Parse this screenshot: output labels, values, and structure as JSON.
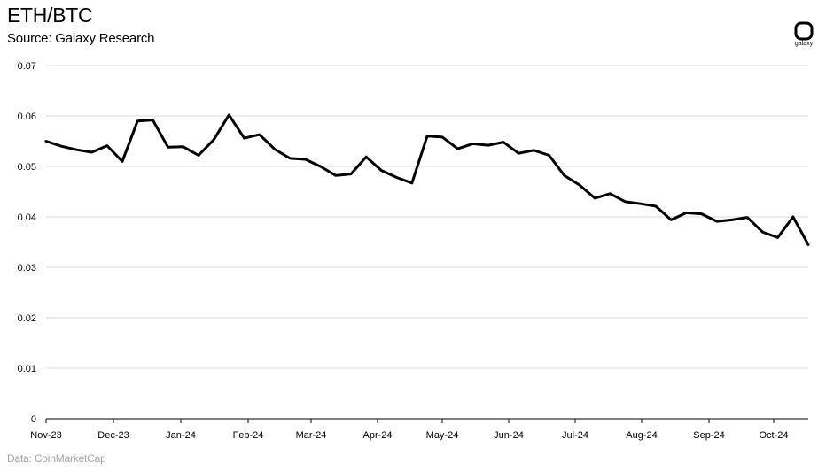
{
  "header": {
    "title": "ETH/BTC",
    "subtitle": "Source: Galaxy Research"
  },
  "logo": {
    "text": "galaxy",
    "icon": "galaxy-logo-icon"
  },
  "footer": {
    "data_source": "Data: CoinMarketCap"
  },
  "chart_data": {
    "type": "line",
    "title": "ETH/BTC",
    "subtitle": "Source: Galaxy Research",
    "xlabel": "",
    "ylabel": "",
    "x_tick_labels": [
      "Nov-23",
      "Dec-23",
      "Jan-24",
      "Feb-24",
      "Mar-24",
      "Apr-24",
      "May-24",
      "Jun-24",
      "Jul-24",
      "Aug-24",
      "Sep-24",
      "Oct-24"
    ],
    "y_tick_labels": [
      "0",
      "0.01",
      "0.02",
      "0.03",
      "0.04",
      "0.05",
      "0.06",
      "0.07"
    ],
    "ylim": [
      0,
      0.07
    ],
    "grid": "horizontal",
    "legend": "none",
    "line_color": "#000000",
    "series": [
      {
        "values": [
          0.055,
          0.054,
          0.0533,
          0.0528,
          0.0541,
          0.051,
          0.059,
          0.0592,
          0.0538,
          0.0539,
          0.0522,
          0.0553,
          0.0602,
          0.0556,
          0.0563,
          0.0534,
          0.0516,
          0.0514,
          0.05,
          0.0482,
          0.0485,
          0.0519,
          0.0492,
          0.0478,
          0.0467,
          0.056,
          0.0558,
          0.0535,
          0.0545,
          0.0542,
          0.0548,
          0.0526,
          0.0532,
          0.0522,
          0.0482,
          0.0463,
          0.0437,
          0.0446,
          0.043,
          0.0426,
          0.0421,
          0.0394,
          0.0408,
          0.0406,
          0.0391,
          0.0394,
          0.0399,
          0.037,
          0.0359,
          0.04,
          0.0345
        ]
      }
    ]
  }
}
